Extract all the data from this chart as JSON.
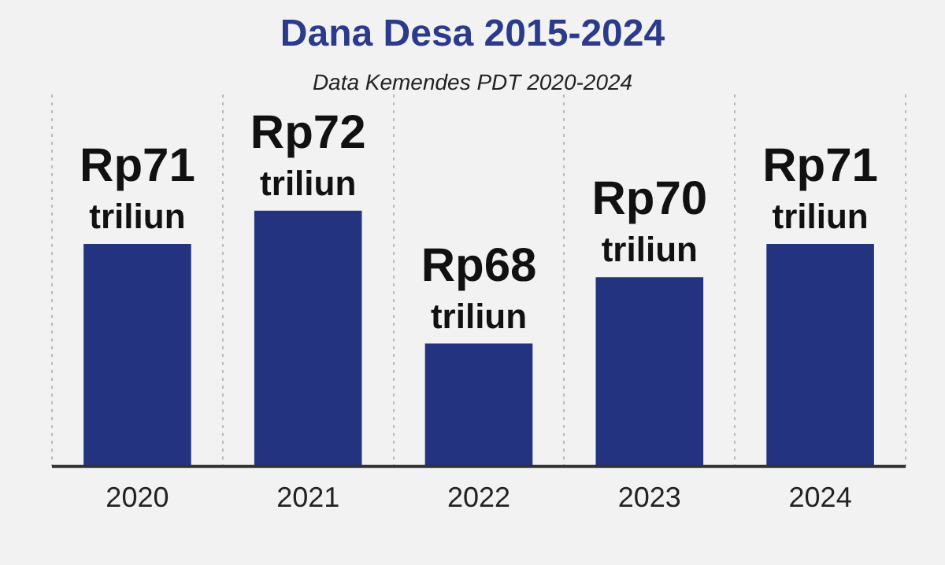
{
  "chart_data": {
    "type": "bar",
    "title": "Dana Desa 2015-2024",
    "subtitle": "Data Kemendes PDT 2020-2024",
    "categories": [
      "2020",
      "2021",
      "2022",
      "2023",
      "2024"
    ],
    "values": [
      71,
      72,
      68,
      70,
      71
    ],
    "value_labels": [
      "Rp71 triliun",
      "Rp72 triliun",
      "Rp68 triliun",
      "Rp70 triliun",
      "Rp71 triliun"
    ],
    "color": "#233380",
    "ylim": [
      64.3,
      75.5
    ],
    "tick_labels": "x",
    "grid": "x"
  }
}
